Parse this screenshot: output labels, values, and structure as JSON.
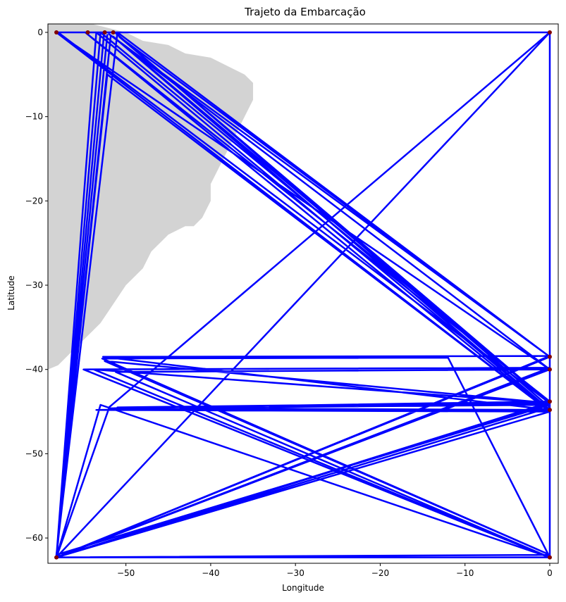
{
  "chart_data": {
    "type": "line",
    "title": "Trajeto da Embarcação",
    "xlabel": "Longitude",
    "ylabel": "Latitude",
    "xlim": [
      -59.2,
      1.0
    ],
    "ylim": [
      -63.0,
      1.0
    ],
    "xticks": [
      -50,
      -40,
      -30,
      -20,
      -10,
      0
    ],
    "yticks": [
      0,
      -10,
      -20,
      -30,
      -40,
      -50,
      -60
    ],
    "xtick_labels": [
      "−50",
      "−40",
      "−30",
      "−20",
      "−10",
      "0"
    ],
    "ytick_labels": [
      "0",
      "−10",
      "−20",
      "−30",
      "−40",
      "−50",
      "−60"
    ],
    "grid": false,
    "legend": "none",
    "colors": {
      "track": "#0000ff",
      "marker": "#800000",
      "land": "#d3d3d3"
    },
    "land_outline": {
      "lon": [
        -59.2,
        -54,
        -52,
        -50,
        -48,
        -45,
        -43,
        -40,
        -38,
        -36,
        -35,
        -35,
        -36,
        -37,
        -38,
        -39,
        -40,
        -40,
        -41,
        -42,
        -43,
        -44,
        -45,
        -46,
        -47,
        -48,
        -49,
        -50,
        -51,
        -52,
        -53,
        -54,
        -55,
        -56,
        -57,
        -58,
        -59.2
      ],
      "lat": [
        1.0,
        1.0,
        0.5,
        0.0,
        -1.0,
        -1.5,
        -2.5,
        -3.0,
        -4.0,
        -5.0,
        -6.0,
        -8.0,
        -10.0,
        -12.0,
        -14.0,
        -16.0,
        -18.0,
        -20.0,
        -22.0,
        -23.0,
        -23.0,
        -23.5,
        -24.0,
        -25.0,
        -26.0,
        -28.0,
        -29.0,
        -30.0,
        -31.5,
        -33.0,
        -34.5,
        -35.5,
        -36.5,
        -37.5,
        -38.5,
        -39.5,
        -40.0
      ]
    },
    "series": [
      {
        "x": [
          -58.2,
          0.0,
          0.0,
          -58.2,
          0.0,
          -51.3,
          -58.0,
          0.0,
          -50.8,
          0.0,
          -52.0,
          0.0,
          -58.2,
          0.0,
          -53.5,
          0.0,
          -52.5,
          0.0,
          -58.2,
          0.0,
          -51.0,
          -58.2,
          0.0,
          -51.4,
          0.0,
          -54.8,
          0.0,
          -52.2,
          -58.2,
          0.0,
          -52.8,
          -12.0,
          0.0,
          -55.0,
          0.0,
          -58.2,
          0.0,
          -53.0,
          -58.2,
          -52.6,
          -58.2,
          -51.8,
          -58.2,
          -53.5,
          0.0,
          -52.0,
          -58.2,
          0.0,
          -51.2,
          0.0,
          -53.0,
          -58.2,
          -52.2,
          -58.2,
          0.0,
          -51.0,
          0.0,
          -58.2,
          0.0,
          -52.7,
          0.0,
          -51.5,
          0.0,
          -53.8,
          0.0,
          -58.2,
          0.0,
          -52.0
        ],
        "y": [
          0.0,
          0.0,
          -62.3,
          -62.3,
          -44.5,
          0.0,
          0.0,
          -44.0,
          -0.5,
          -38.5,
          -0.2,
          -40.0,
          0.0,
          -45.0,
          -44.8,
          -44.0,
          -39.0,
          -62.0,
          -62.3,
          -38.5,
          0.0,
          -62.0,
          -44.2,
          -44.6,
          -43.8,
          0.0,
          -45.0,
          -5.0,
          -62.3,
          -62.0,
          -38.7,
          -38.6,
          -62.3,
          -40.0,
          -39.8,
          -62.3,
          -44.0,
          0.0,
          -62.3,
          -0.3,
          -62.3,
          -0.5,
          -62.3,
          0.0,
          -44.8,
          -44.6,
          -62.3,
          -40.0,
          -40.3,
          -62.3,
          -44.2,
          -62.3,
          -0.3,
          -62.3,
          -45.0,
          -44.5,
          -43.9,
          -62.3,
          -38.4,
          -38.5,
          -44.8,
          -0.5,
          -44.0,
          -40.0,
          -62.3,
          -62.3,
          0.0,
          -44.5
        ]
      }
    ],
    "markers": {
      "x": [
        -58.2,
        -58.2,
        0.0,
        0.0,
        0.0,
        0.0,
        0.0,
        0.0,
        -52.5,
        -51.5,
        -54.5
      ],
      "y": [
        0.0,
        -62.3,
        0.0,
        -62.3,
        -38.5,
        -40.0,
        -43.8,
        -44.8,
        0.0,
        0.0,
        0.0
      ]
    }
  }
}
